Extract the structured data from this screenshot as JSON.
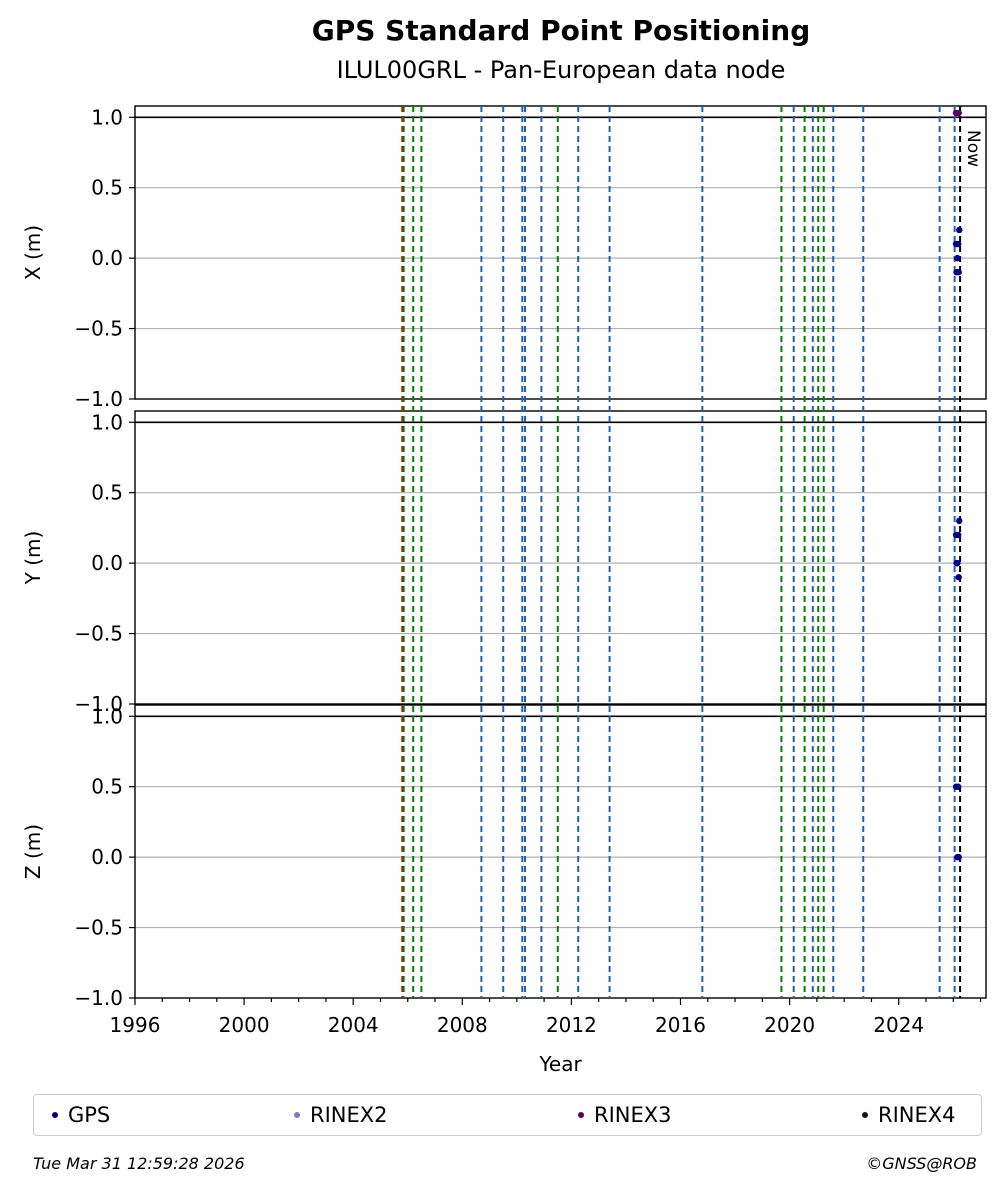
{
  "title": "GPS Standard Point Positioning",
  "subtitle": "ILUL00GRL - Pan-European data node",
  "footer": {
    "timestamp": "Tue Mar 31 12:59:28 2026",
    "credit": "©GNSS@ROB"
  },
  "colors": {
    "GPS": "#00008b",
    "RINEX2": "#7b7bc8",
    "RINEX3": "#5a0060",
    "RINEX4": "#2a0a14",
    "red_line": "#e00000",
    "green_line": "#008000",
    "blue_line": "#1f5fb4",
    "grid": "#b0b0b0"
  },
  "chart_data": {
    "type": "scatter",
    "xlabel": "Year",
    "xlim": [
      1996,
      2027.2
    ],
    "xticks": [
      "1996",
      "2000",
      "2004",
      "2008",
      "2012",
      "2016",
      "2020",
      "2024"
    ],
    "now_label": "Now",
    "now_x": 2026.25,
    "legend": [
      "GPS",
      "RINEX2",
      "RINEX3",
      "RINEX4"
    ],
    "panels": [
      {
        "ylabel": "X (m)",
        "ylim": [
          -1.0,
          1.0
        ],
        "yticks": [
          "1.0",
          "0.5",
          "0.0",
          "−0.5",
          "−1.0"
        ],
        "points": [
          {
            "x": 2026.1,
            "y": 0.1,
            "series": "GPS"
          },
          {
            "x": 2026.15,
            "y": 0.0,
            "series": "GPS"
          },
          {
            "x": 2026.2,
            "y": -0.1,
            "series": "GPS"
          },
          {
            "x": 2026.22,
            "y": 0.2,
            "series": "GPS"
          },
          {
            "x": 2026.12,
            "y": -0.1,
            "series": "GPS"
          },
          {
            "x": 2026.18,
            "y": 0.1,
            "series": "GPS"
          },
          {
            "x": 2026.1,
            "y": 1.03,
            "series": "RINEX3"
          },
          {
            "x": 2026.2,
            "y": 1.03,
            "series": "RINEX3"
          }
        ]
      },
      {
        "ylabel": "Y (m)",
        "ylim": [
          -1.0,
          1.0
        ],
        "yticks": [
          "1.0",
          "0.5",
          "0.0",
          "−0.5",
          "−1.0"
        ],
        "points": [
          {
            "x": 2026.1,
            "y": 0.2,
            "series": "GPS"
          },
          {
            "x": 2026.15,
            "y": 0.0,
            "series": "GPS"
          },
          {
            "x": 2026.2,
            "y": -0.1,
            "series": "GPS"
          },
          {
            "x": 2026.22,
            "y": 0.3,
            "series": "GPS"
          },
          {
            "x": 2026.12,
            "y": 0.0,
            "series": "GPS"
          },
          {
            "x": 2026.18,
            "y": 0.2,
            "series": "GPS"
          }
        ]
      },
      {
        "ylabel": "Z (m)",
        "ylim": [
          -1.0,
          1.0
        ],
        "yticks": [
          "1.0",
          "0.5",
          "0.0",
          "−0.5",
          "−1.0"
        ],
        "points": [
          {
            "x": 2026.1,
            "y": 0.5,
            "series": "GPS"
          },
          {
            "x": 2026.15,
            "y": 0.0,
            "series": "GPS"
          },
          {
            "x": 2026.2,
            "y": 0.0,
            "series": "GPS"
          },
          {
            "x": 2026.18,
            "y": 0.5,
            "series": "GPS"
          }
        ]
      }
    ],
    "event_lines": [
      {
        "x": 2005.8,
        "color": "red"
      },
      {
        "x": 2005.85,
        "color": "green"
      },
      {
        "x": 2006.2,
        "color": "green"
      },
      {
        "x": 2006.5,
        "color": "green"
      },
      {
        "x": 2008.7,
        "color": "blue"
      },
      {
        "x": 2009.5,
        "color": "blue"
      },
      {
        "x": 2010.2,
        "color": "blue"
      },
      {
        "x": 2010.3,
        "color": "blue"
      },
      {
        "x": 2010.9,
        "color": "blue"
      },
      {
        "x": 2011.5,
        "color": "green"
      },
      {
        "x": 2012.25,
        "color": "blue"
      },
      {
        "x": 2013.4,
        "color": "blue"
      },
      {
        "x": 2016.8,
        "color": "blue"
      },
      {
        "x": 2019.7,
        "color": "green"
      },
      {
        "x": 2020.15,
        "color": "blue"
      },
      {
        "x": 2020.55,
        "color": "green"
      },
      {
        "x": 2020.85,
        "color": "blue"
      },
      {
        "x": 2021.05,
        "color": "green"
      },
      {
        "x": 2021.25,
        "color": "green"
      },
      {
        "x": 2021.6,
        "color": "blue"
      },
      {
        "x": 2022.7,
        "color": "blue"
      },
      {
        "x": 2025.5,
        "color": "blue"
      },
      {
        "x": 2026.05,
        "color": "blue"
      },
      {
        "x": 2026.25,
        "color": "black"
      }
    ]
  }
}
